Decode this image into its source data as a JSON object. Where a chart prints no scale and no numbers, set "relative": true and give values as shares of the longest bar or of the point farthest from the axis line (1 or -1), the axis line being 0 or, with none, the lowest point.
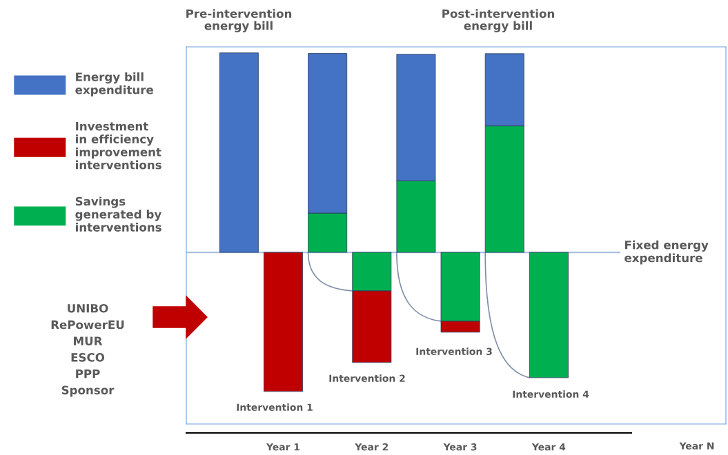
{
  "chart_data": {
    "type": "bar",
    "relative": true,
    "stacked": true,
    "categories": [
      null,
      "Year 1",
      null,
      "Year 2",
      null,
      "Year 3",
      null,
      "Year 4"
    ],
    "series": [
      {
        "name": "Savings\ngenerated by\ninterventions",
        "color": "#00b050",
        "values": [
          null,
          null,
          0.197,
          -0.193,
          0.359,
          -0.345,
          0.634,
          -0.628
        ]
      },
      {
        "name": "Energy bill\nexpenditure",
        "color": "#4472c4",
        "values": [
          1,
          null,
          0.8,
          null,
          0.634,
          null,
          0.362,
          null
        ]
      },
      {
        "name": "Investment\nin efficiency\nimprovement\ninterventions",
        "color": "#c00000",
        "values": [
          null,
          -0.697,
          null,
          -0.359,
          null,
          -0.055,
          null,
          null
        ]
      }
    ],
    "ref_lines": [
      {
        "axis": "y",
        "value": 0,
        "label": "Fixed energy\nexpenditure",
        "color": "#a9bfe0"
      }
    ],
    "annotations": [
      "Pre-intervention\nenergy bill",
      "Post-intervention\nenergy bill",
      "UNIBO\nRePowerEU\nMUR\nESCO\nPPP\nSponsor",
      "Year N",
      "Intervention 1",
      "Intervention 2",
      "Intervention 3",
      "Intervention 4"
    ],
    "legend": "left",
    "grid": false
  }
}
